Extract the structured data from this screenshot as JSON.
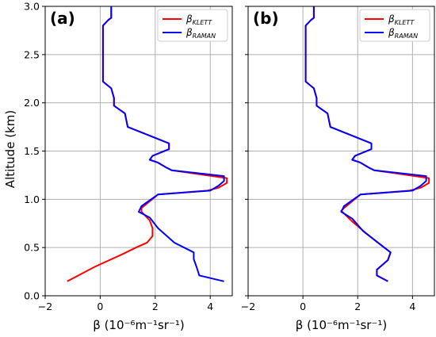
{
  "chart_data": [
    {
      "type": "line",
      "panel_label": "(a)",
      "xlabel": "β (10⁻⁶m⁻¹sr⁻¹)",
      "ylabel": "Altitude (km)",
      "xlim": [
        -2,
        4.8
      ],
      "ylim": [
        0,
        3.0
      ],
      "xticks": [
        -2,
        0,
        2,
        4
      ],
      "yticks": [
        0.0,
        0.5,
        1.0,
        1.5,
        2.0,
        2.5,
        3.0
      ],
      "grid": true,
      "legend_position": "top-right",
      "series": [
        {
          "name": "β",
          "name_sub": "KLETT",
          "color": "#ff0000",
          "points": [
            [
              -1.2,
              0.15
            ],
            [
              -0.2,
              0.3
            ],
            [
              0.8,
              0.43
            ],
            [
              1.3,
              0.5
            ],
            [
              1.7,
              0.55
            ],
            [
              1.9,
              0.62
            ],
            [
              1.9,
              0.7
            ],
            [
              1.8,
              0.78
            ],
            [
              1.5,
              0.87
            ],
            [
              1.5,
              0.91
            ],
            [
              2.1,
              1.05
            ],
            [
              3.9,
              1.09
            ],
            [
              4.3,
              1.12
            ],
            [
              4.6,
              1.17
            ],
            [
              4.6,
              1.22
            ],
            [
              2.6,
              1.3
            ],
            [
              2.4,
              1.33
            ],
            [
              2.1,
              1.38
            ],
            [
              1.8,
              1.41
            ],
            [
              1.9,
              1.45
            ],
            [
              2.5,
              1.52
            ],
            [
              2.5,
              1.58
            ],
            [
              1.0,
              1.75
            ],
            [
              0.9,
              1.89
            ],
            [
              0.5,
              1.97
            ],
            [
              0.5,
              2.05
            ],
            [
              0.4,
              2.15
            ],
            [
              0.1,
              2.22
            ],
            [
              0.1,
              2.45
            ],
            [
              0.1,
              2.65
            ],
            [
              0.1,
              2.8
            ],
            [
              0.3,
              2.86
            ],
            [
              0.4,
              2.88
            ],
            [
              0.4,
              3.0
            ]
          ]
        },
        {
          "name": "β",
          "name_sub": "RAMAN",
          "color": "#0000ff",
          "points": [
            [
              4.5,
              0.15
            ],
            [
              3.6,
              0.21
            ],
            [
              3.5,
              0.3
            ],
            [
              3.4,
              0.38
            ],
            [
              3.4,
              0.45
            ],
            [
              2.7,
              0.55
            ],
            [
              2.1,
              0.7
            ],
            [
              1.8,
              0.81
            ],
            [
              1.4,
              0.87
            ],
            [
              1.5,
              0.93
            ],
            [
              2.1,
              1.05
            ],
            [
              4.0,
              1.09
            ],
            [
              4.3,
              1.14
            ],
            [
              4.5,
              1.19
            ],
            [
              4.5,
              1.24
            ],
            [
              2.6,
              1.3
            ],
            [
              2.4,
              1.33
            ],
            [
              2.1,
              1.38
            ],
            [
              1.8,
              1.41
            ],
            [
              1.9,
              1.45
            ],
            [
              2.5,
              1.52
            ],
            [
              2.5,
              1.58
            ],
            [
              1.0,
              1.75
            ],
            [
              0.9,
              1.89
            ],
            [
              0.5,
              1.97
            ],
            [
              0.5,
              2.05
            ],
            [
              0.4,
              2.15
            ],
            [
              0.1,
              2.22
            ],
            [
              0.1,
              2.45
            ],
            [
              0.1,
              2.65
            ],
            [
              0.1,
              2.8
            ],
            [
              0.3,
              2.86
            ],
            [
              0.4,
              2.88
            ],
            [
              0.4,
              3.0
            ]
          ]
        }
      ]
    },
    {
      "type": "line",
      "panel_label": "(b)",
      "xlabel": "β (10⁻⁶m⁻¹sr⁻¹)",
      "ylabel": "",
      "xlim": [
        -2,
        4.8
      ],
      "ylim": [
        0,
        3.0
      ],
      "xticks": [
        -2,
        0,
        2,
        4
      ],
      "yticks": [
        0.0,
        0.5,
        1.0,
        1.5,
        2.0,
        2.5,
        3.0
      ],
      "grid": true,
      "legend_position": "top-right",
      "series": [
        {
          "name": "β",
          "name_sub": "KLETT",
          "color": "#ff0000",
          "points": [
            [
              3.1,
              0.15
            ],
            [
              2.7,
              0.21
            ],
            [
              2.7,
              0.27
            ],
            [
              3.1,
              0.37
            ],
            [
              3.2,
              0.45
            ],
            [
              2.7,
              0.56
            ],
            [
              2.3,
              0.65
            ],
            [
              1.8,
              0.77
            ],
            [
              1.4,
              0.88
            ],
            [
              1.5,
              0.91
            ],
            [
              2.1,
              1.05
            ],
            [
              3.9,
              1.09
            ],
            [
              4.3,
              1.12
            ],
            [
              4.6,
              1.17
            ],
            [
              4.6,
              1.22
            ],
            [
              2.6,
              1.3
            ],
            [
              2.4,
              1.33
            ],
            [
              2.1,
              1.38
            ],
            [
              1.8,
              1.41
            ],
            [
              1.9,
              1.45
            ],
            [
              2.5,
              1.52
            ],
            [
              2.5,
              1.58
            ],
            [
              1.0,
              1.75
            ],
            [
              0.9,
              1.89
            ],
            [
              0.5,
              1.97
            ],
            [
              0.5,
              2.05
            ],
            [
              0.4,
              2.15
            ],
            [
              0.1,
              2.22
            ],
            [
              0.1,
              2.45
            ],
            [
              0.1,
              2.65
            ],
            [
              0.1,
              2.8
            ],
            [
              0.3,
              2.86
            ],
            [
              0.4,
              2.88
            ],
            [
              0.4,
              3.0
            ]
          ]
        },
        {
          "name": "β",
          "name_sub": "RAMAN",
          "color": "#0000ff",
          "points": [
            [
              3.1,
              0.15
            ],
            [
              2.7,
              0.21
            ],
            [
              2.7,
              0.27
            ],
            [
              3.1,
              0.37
            ],
            [
              3.2,
              0.45
            ],
            [
              2.7,
              0.56
            ],
            [
              2.2,
              0.67
            ],
            [
              1.8,
              0.8
            ],
            [
              1.4,
              0.87
            ],
            [
              1.5,
              0.93
            ],
            [
              2.1,
              1.05
            ],
            [
              4.0,
              1.09
            ],
            [
              4.3,
              1.14
            ],
            [
              4.5,
              1.19
            ],
            [
              4.5,
              1.24
            ],
            [
              2.6,
              1.3
            ],
            [
              2.4,
              1.33
            ],
            [
              2.1,
              1.38
            ],
            [
              1.8,
              1.41
            ],
            [
              1.9,
              1.45
            ],
            [
              2.5,
              1.52
            ],
            [
              2.5,
              1.58
            ],
            [
              1.0,
              1.75
            ],
            [
              0.9,
              1.89
            ],
            [
              0.5,
              1.97
            ],
            [
              0.5,
              2.05
            ],
            [
              0.4,
              2.15
            ],
            [
              0.1,
              2.22
            ],
            [
              0.1,
              2.45
            ],
            [
              0.1,
              2.65
            ],
            [
              0.1,
              2.8
            ],
            [
              0.3,
              2.86
            ],
            [
              0.4,
              2.88
            ],
            [
              0.4,
              3.0
            ]
          ]
        }
      ]
    }
  ]
}
